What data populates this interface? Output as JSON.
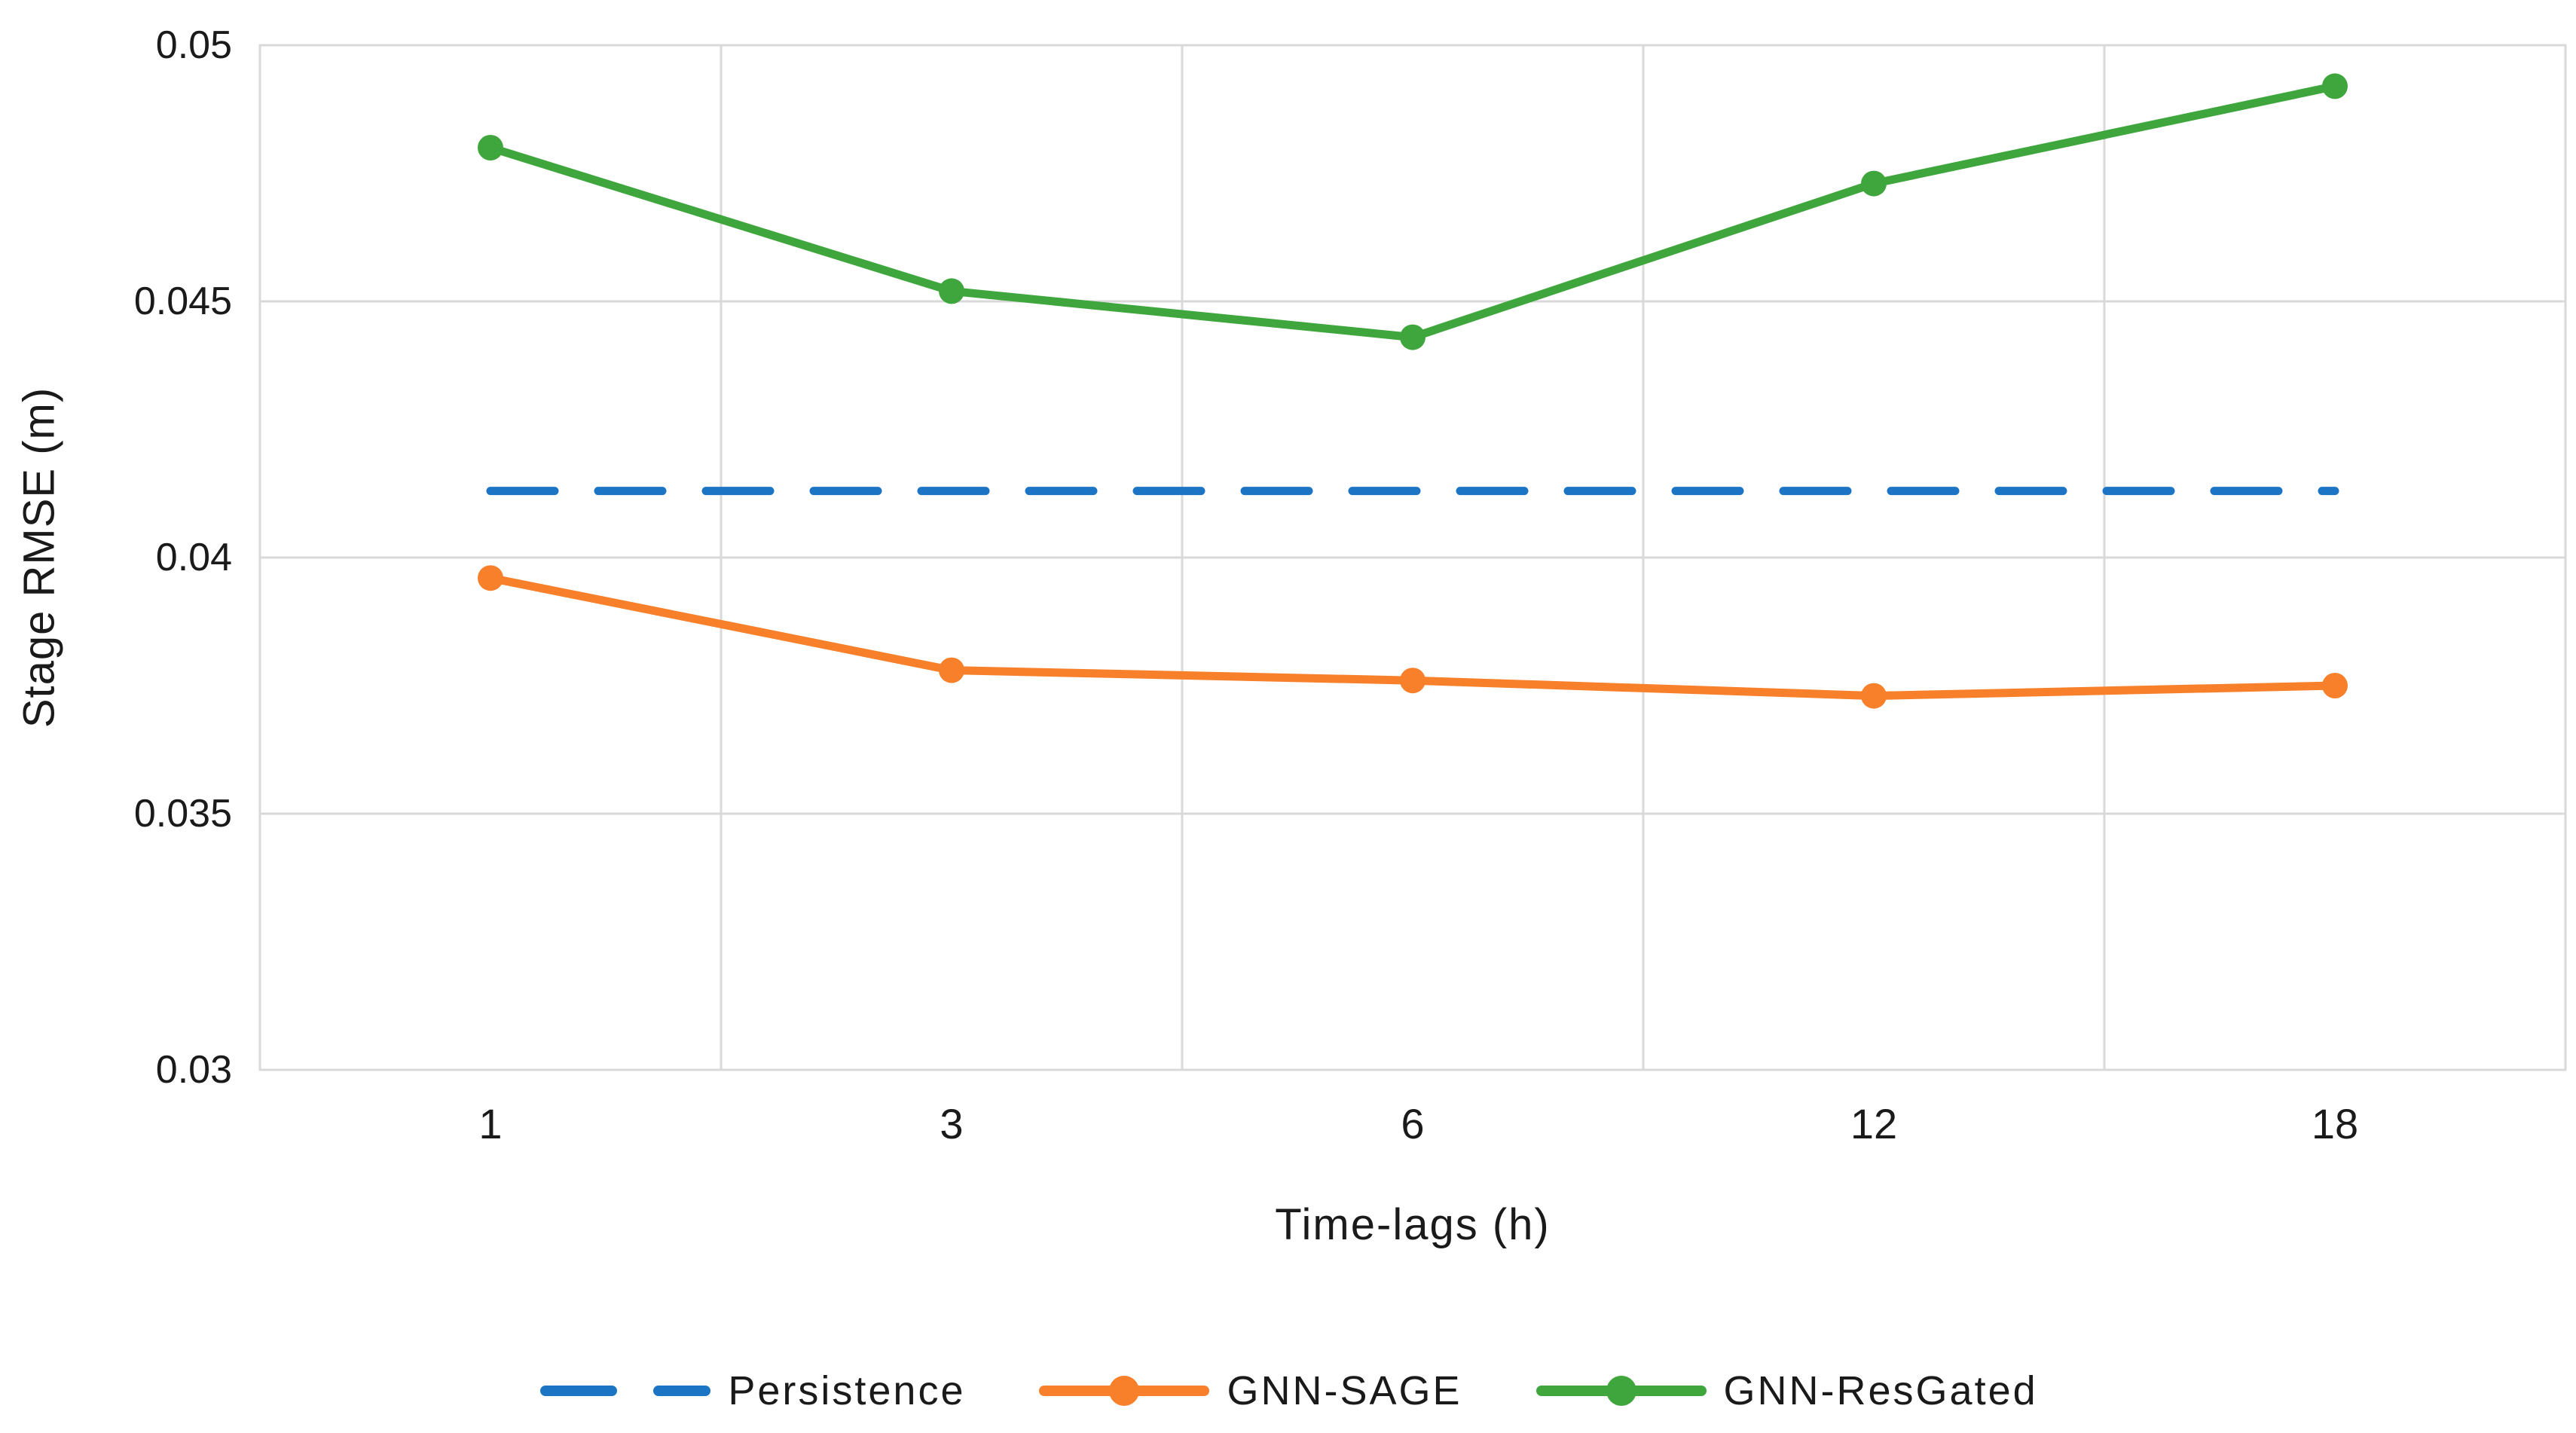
{
  "chart_data": {
    "type": "line",
    "title": "",
    "xlabel": "Time-lags (h)",
    "ylabel": "Stage RMSE (m)",
    "categories": [
      "1",
      "3",
      "6",
      "12",
      "18"
    ],
    "ylim": [
      0.03,
      0.05
    ],
    "yticks": [
      0.05,
      0.045,
      0.04,
      0.035,
      0.03
    ],
    "ytick_labels": [
      "0.05",
      "0.045",
      "0.04",
      "0.035",
      "0.03"
    ],
    "grid": {
      "horizontal": true,
      "vertical": true,
      "color": "#d9d9d9",
      "legend_position": "bottom"
    },
    "series": [
      {
        "name": "Persistence",
        "color": "#1b74c4",
        "style": "dashed",
        "marker": false,
        "values": [
          0.0413,
          0.0413,
          0.0413,
          0.0413,
          0.0413
        ]
      },
      {
        "name": "GNN-SAGE",
        "color": "#f8802a",
        "style": "solid",
        "marker": true,
        "values": [
          0.0396,
          0.0378,
          0.0376,
          0.0373,
          0.0375
        ]
      },
      {
        "name": "GNN-ResGated",
        "color": "#3ea63c",
        "style": "solid",
        "marker": true,
        "values": [
          0.048,
          0.0452,
          0.0443,
          0.0473,
          0.0492
        ]
      }
    ]
  }
}
